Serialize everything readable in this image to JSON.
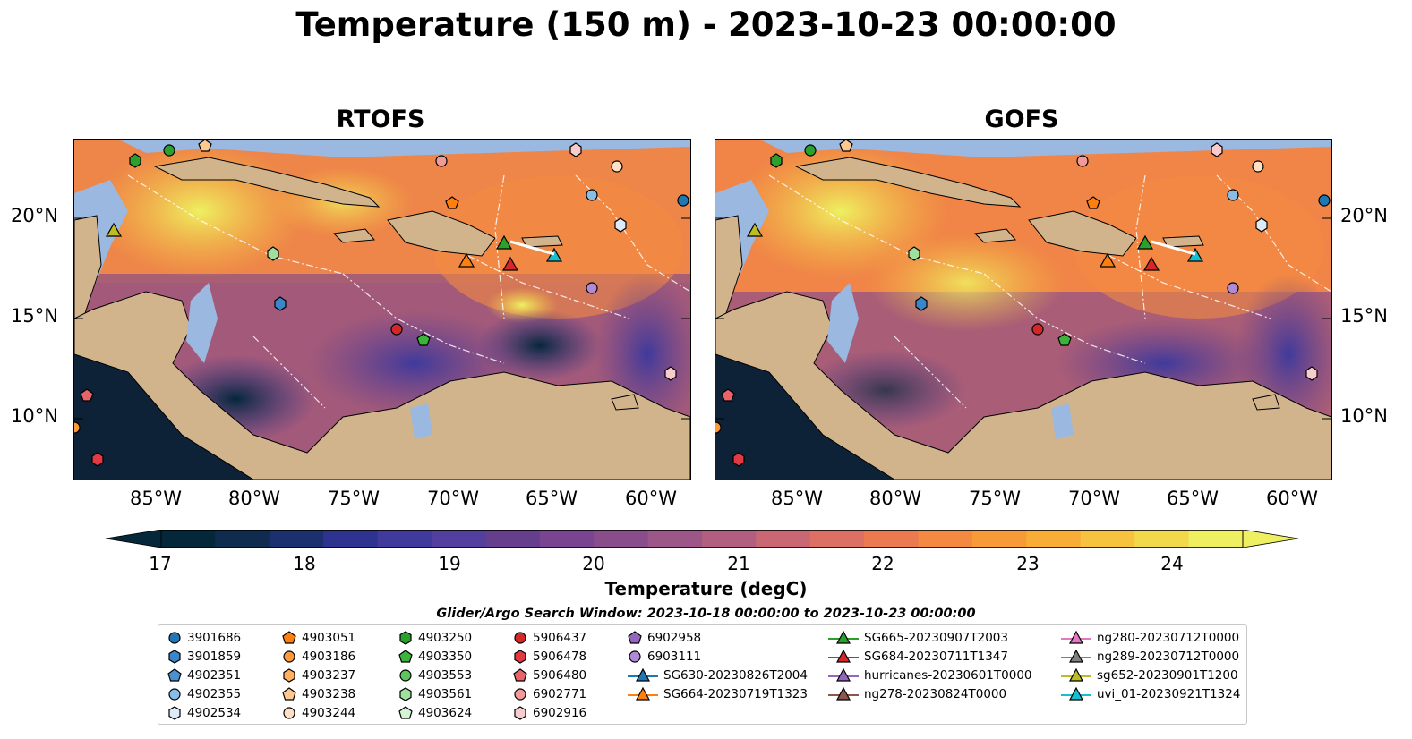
{
  "title": "Temperature (150 m) - 2023-10-23 00:00:00",
  "panels": [
    {
      "name": "RTOFS"
    },
    {
      "name": "GOFS"
    }
  ],
  "y_ticks": [
    "20°N",
    "15°N",
    "10°N"
  ],
  "x_ticks": [
    "85°W",
    "80°W",
    "75°W",
    "70°W",
    "65°W",
    "60°W"
  ],
  "colorbar": {
    "label": "Temperature (degC)",
    "ticks": [
      "17",
      "18",
      "19",
      "20",
      "21",
      "22",
      "23",
      "24"
    ],
    "colors": [
      "#05273a",
      "#0f2c4f",
      "#1c2f6e",
      "#2e3390",
      "#3f3a9c",
      "#533f9e",
      "#653f8e",
      "#7a4590",
      "#8a4d8c",
      "#9c5687",
      "#b25e80",
      "#c96873",
      "#dd7064",
      "#ec7a51",
      "#f48a41",
      "#f79b39",
      "#f8ad36",
      "#f6c240",
      "#f2d84b",
      "#eef061"
    ]
  },
  "legend": {
    "title": "Glider/Argo Search Window: 2023-10-18 00:00:00 to 2023-10-23 00:00:00",
    "columns": [
      [
        {
          "label": "3901686",
          "marker": "circle",
          "color": "#1f77b4"
        },
        {
          "label": "3901859",
          "marker": "hexagon",
          "color": "#3a86c8"
        },
        {
          "label": "4902351",
          "marker": "pentagon",
          "color": "#4c90d0"
        },
        {
          "label": "4902355",
          "marker": "circle",
          "color": "#89bde8"
        },
        {
          "label": "4902534",
          "marker": "hexagon",
          "color": "#dcebf7"
        }
      ],
      [
        {
          "label": "4903051",
          "marker": "pentagon",
          "color": "#ff7f0e"
        },
        {
          "label": "4903186",
          "marker": "circle",
          "color": "#ff9a3c"
        },
        {
          "label": "4903237",
          "marker": "hexagon",
          "color": "#ffb061"
        },
        {
          "label": "4903238",
          "marker": "pentagon",
          "color": "#ffc88f"
        },
        {
          "label": "4903244",
          "marker": "circle",
          "color": "#ffe0c2"
        }
      ],
      [
        {
          "label": "4903250",
          "marker": "hexagon",
          "color": "#2ca02c"
        },
        {
          "label": "4903350",
          "marker": "pentagon",
          "color": "#3cb43c"
        },
        {
          "label": "4903553",
          "marker": "circle",
          "color": "#5ec45e"
        },
        {
          "label": "4903561",
          "marker": "hexagon",
          "color": "#9ee09e"
        },
        {
          "label": "4903624",
          "marker": "pentagon",
          "color": "#d4f5d4"
        }
      ],
      [
        {
          "label": "5906437",
          "marker": "circle",
          "color": "#d62728"
        },
        {
          "label": "5906478",
          "marker": "hexagon",
          "color": "#e23a45"
        },
        {
          "label": "5906480",
          "marker": "pentagon",
          "color": "#e8636a"
        },
        {
          "label": "6902771",
          "marker": "circle",
          "color": "#f09a9a"
        },
        {
          "label": "6902916",
          "marker": "hexagon",
          "color": "#f8cccc"
        }
      ],
      [
        {
          "label": "6902958",
          "marker": "pentagon",
          "color": "#9467bd"
        },
        {
          "label": "6903111",
          "marker": "circle",
          "color": "#b08ad2"
        },
        {
          "label": "SG630-20230826T2004",
          "marker": "triangle-line",
          "color": "#1f77b4"
        },
        {
          "label": "SG664-20230719T1323",
          "marker": "triangle-line",
          "color": "#ff7f0e"
        }
      ],
      [
        {
          "label": "SG665-20230907T2003",
          "marker": "triangle-line",
          "color": "#2ca02c"
        },
        {
          "label": "SG684-20230711T1347",
          "marker": "triangle-line",
          "color": "#d62728"
        },
        {
          "label": "hurricanes-20230601T0000",
          "marker": "triangle-line",
          "color": "#9467bd"
        },
        {
          "label": "ng278-20230824T0000",
          "marker": "triangle-line",
          "color": "#8c564b"
        }
      ],
      [
        {
          "label": "ng280-20230712T0000",
          "marker": "triangle-line",
          "color": "#e377c2"
        },
        {
          "label": "ng289-20230712T0000",
          "marker": "triangle-line",
          "color": "#7f7f7f"
        },
        {
          "label": "sg652-20230901T1200",
          "marker": "triangle-line",
          "color": "#bcbd22"
        },
        {
          "label": "uvi_01-20230921T1324",
          "marker": "triangle-line",
          "color": "#17becf"
        }
      ]
    ]
  },
  "colors": {
    "land": "#d2b48c",
    "shelf": "#9ab8e0",
    "ocean_dark": "#0d2236"
  }
}
